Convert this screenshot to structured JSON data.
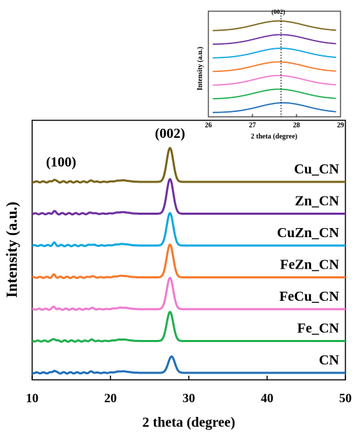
{
  "chart_data": [
    {
      "type": "line",
      "xlabel": "2 theta (degree)",
      "ylabel": "Intensity (a.u.)",
      "xlim": [
        10,
        50
      ],
      "x_ticks": [
        "10",
        "20",
        "30",
        "40",
        "50"
      ],
      "y_ticks_labeled": false,
      "grid": false,
      "legend": "series labels printed at right end of each trace",
      "peak_annotations": [
        {
          "label": "(100)",
          "x": 12.8
        },
        {
          "label": "(002)",
          "x": 27.6
        }
      ],
      "series": [
        {
          "name": "Cu_CN",
          "color": "#7a6419",
          "peak_x": 27.6,
          "relative_peak_height": 0.93
        },
        {
          "name": "Zn_CN",
          "color": "#7030a0",
          "peak_x": 27.6,
          "relative_peak_height": 0.95
        },
        {
          "name": "CuZn_CN",
          "color": "#10a8e0",
          "peak_x": 27.6,
          "relative_peak_height": 0.89
        },
        {
          "name": "FeZn_CN",
          "color": "#f57a2c",
          "peak_x": 27.6,
          "relative_peak_height": 0.9
        },
        {
          "name": "FeCu_CN",
          "color": "#f07ad0",
          "peak_x": 27.6,
          "relative_peak_height": 0.86
        },
        {
          "name": "Fe_CN",
          "color": "#20b050",
          "peak_x": 27.6,
          "relative_peak_height": 0.8
        },
        {
          "name": "CN",
          "color": "#1f6fb8",
          "peak_x": 27.8,
          "relative_peak_height": 0.45
        }
      ]
    },
    {
      "type": "line",
      "title": "(002)",
      "xlabel": "2 theta (degree)",
      "ylabel": "Intensity (a.u.)",
      "xlim": [
        26,
        29
      ],
      "x_ticks": [
        "26",
        "27",
        "28",
        "29"
      ],
      "y_ticks_labeled": false,
      "grid": false,
      "reference_line_x": 27.65,
      "series": [
        {
          "name": "Cu_CN",
          "color": "#7a6419",
          "peak_x": 27.6
        },
        {
          "name": "Zn_CN",
          "color": "#7030a0",
          "peak_x": 27.65
        },
        {
          "name": "CuZn_CN",
          "color": "#10a8e0",
          "peak_x": 27.65
        },
        {
          "name": "FeZn_CN",
          "color": "#f57a2c",
          "peak_x": 27.6
        },
        {
          "name": "FeCu_CN",
          "color": "#f07ad0",
          "peak_x": 27.6
        },
        {
          "name": "Fe_CN",
          "color": "#20b050",
          "peak_x": 27.6
        },
        {
          "name": "CN",
          "color": "#1f6fb8",
          "peak_x": 27.7
        }
      ]
    }
  ]
}
